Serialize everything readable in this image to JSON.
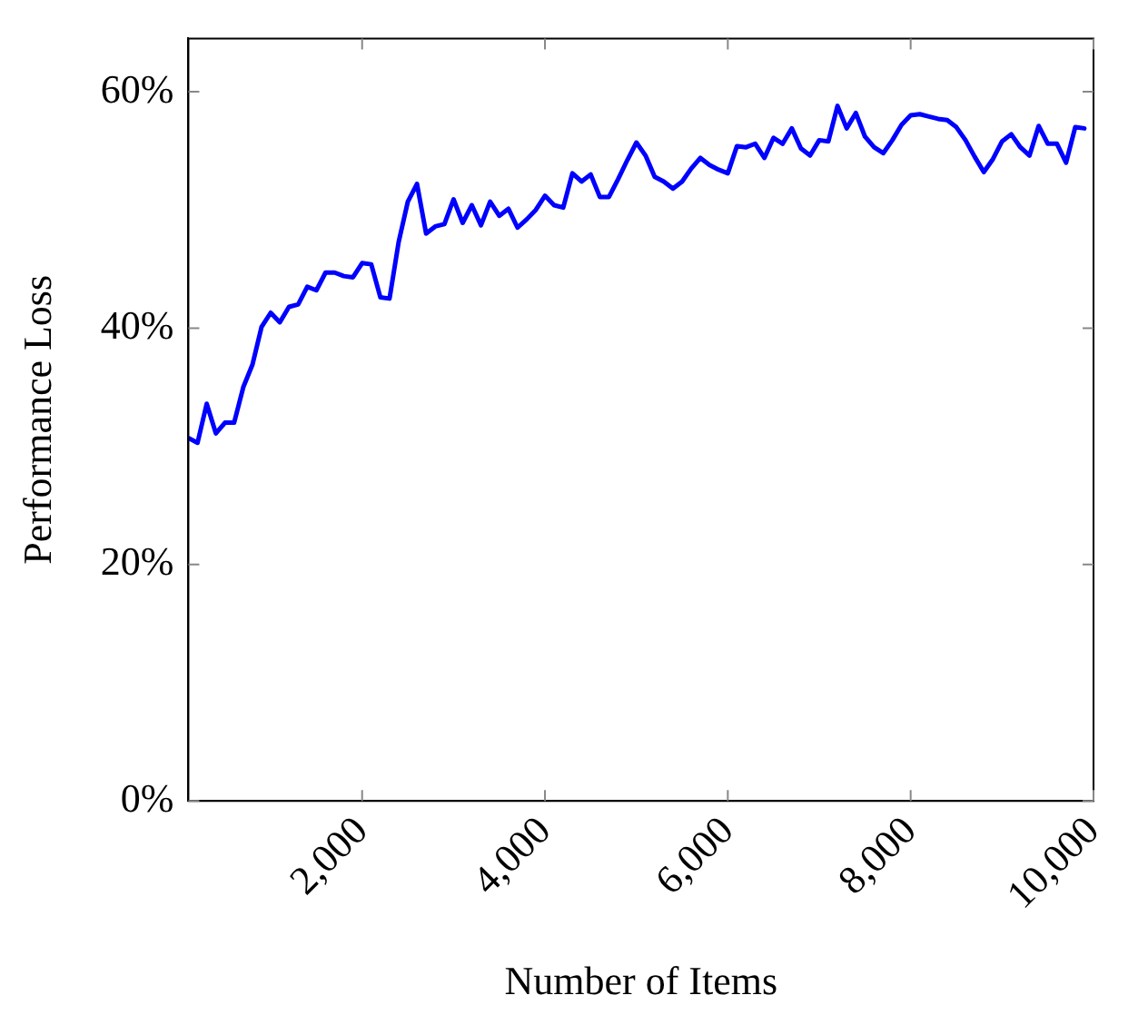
{
  "chart_data": {
    "type": "line",
    "xlabel": "Number of Items",
    "ylabel": "Performance Loss",
    "x": [
      100,
      200,
      300,
      400,
      500,
      600,
      700,
      800,
      900,
      1000,
      1100,
      1200,
      1300,
      1400,
      1500,
      1600,
      1700,
      1800,
      1900,
      2000,
      2100,
      2200,
      2300,
      2400,
      2500,
      2600,
      2700,
      2800,
      2900,
      3000,
      3100,
      3200,
      3300,
      3400,
      3500,
      3600,
      3700,
      3800,
      3900,
      4000,
      4100,
      4200,
      4300,
      4400,
      4500,
      4600,
      4700,
      4800,
      4900,
      5000,
      5100,
      5200,
      5300,
      5400,
      5500,
      5600,
      5700,
      5800,
      5900,
      6000,
      6100,
      6200,
      6300,
      6400,
      6500,
      6600,
      6700,
      6800,
      6900,
      7000,
      7100,
      7200,
      7300,
      7400,
      7500,
      7600,
      7700,
      7800,
      7900,
      8000,
      8100,
      8200,
      8300,
      8400,
      8500,
      8600,
      8700,
      8800,
      8900,
      9000,
      9100,
      9200,
      9300,
      9400,
      9500,
      9600,
      9700,
      9800,
      9900
    ],
    "series": [
      {
        "color": "#0000ff",
        "values": [
          30.7,
          30.3,
          33.6,
          31.1,
          32.0,
          32.0,
          35.0,
          36.9,
          40.1,
          41.3,
          40.5,
          41.8,
          42.0,
          43.5,
          43.2,
          44.7,
          44.7,
          44.4,
          44.3,
          45.5,
          45.4,
          42.6,
          42.5,
          47.3,
          50.7,
          52.2,
          48.0,
          48.6,
          48.8,
          50.9,
          48.9,
          50.4,
          48.7,
          50.7,
          49.5,
          50.1,
          48.5,
          49.2,
          50.0,
          51.2,
          50.4,
          50.2,
          53.1,
          52.4,
          53.0,
          51.1,
          51.1,
          52.6,
          54.2,
          55.7,
          54.6,
          52.8,
          52.4,
          51.8,
          52.4,
          53.5,
          54.4,
          53.8,
          53.4,
          53.1,
          55.4,
          55.3,
          55.6,
          54.4,
          56.1,
          55.6,
          56.9,
          55.2,
          54.6,
          55.9,
          55.8,
          58.8,
          56.9,
          58.2,
          56.2,
          55.3,
          54.8,
          55.9,
          57.2,
          58.0,
          58.1,
          57.9,
          57.7,
          57.6,
          57.0,
          55.9,
          54.5,
          53.2,
          54.3,
          55.8,
          56.4,
          55.3,
          54.6,
          57.1,
          55.6,
          55.6,
          54.0,
          57.0,
          56.9
        ]
      }
    ],
    "xlim": [
      100,
      10000
    ],
    "xticks": [
      {
        "value": 2000,
        "label": "2,000"
      },
      {
        "value": 4000,
        "label": "4,000"
      },
      {
        "value": 6000,
        "label": "6,000"
      },
      {
        "value": 8000,
        "label": "8,000"
      },
      {
        "value": 10000,
        "label": "10,000"
      }
    ],
    "ylim": [
      0,
      64.5
    ],
    "yticks": [
      {
        "value": 0,
        "label": "0%"
      },
      {
        "value": 20,
        "label": "20%"
      },
      {
        "value": 40,
        "label": "40%"
      },
      {
        "value": 60,
        "label": "60%"
      }
    ],
    "grid": false,
    "legend": false,
    "marker": "none",
    "line_style": "solid"
  }
}
